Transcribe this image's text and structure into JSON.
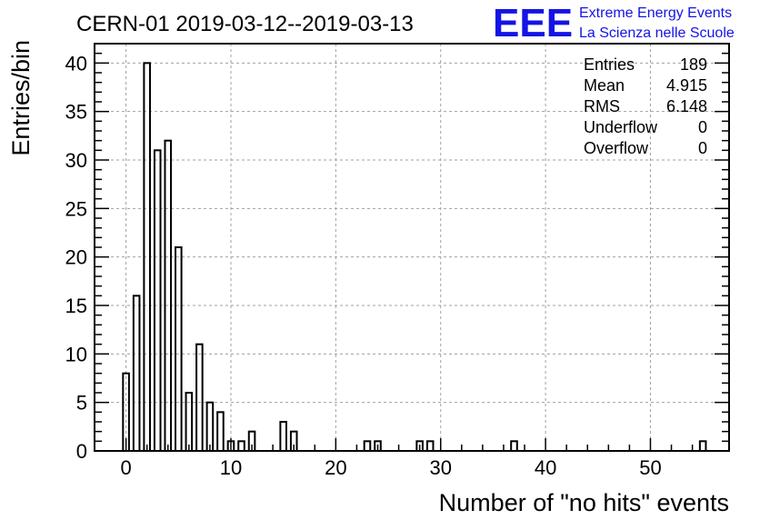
{
  "chart_data": {
    "type": "bar",
    "title": "CERN-01 2019-03-12--2019-03-13",
    "xlabel": "Number of \"no hits\" events",
    "ylabel": "Entries/bin",
    "xlim": [
      -3,
      57.5
    ],
    "ylim": [
      0,
      42
    ],
    "bin_width": 0.57,
    "xticks": [
      0,
      10,
      20,
      30,
      40,
      50
    ],
    "yticks": [
      0,
      5,
      10,
      15,
      20,
      25,
      30,
      35,
      40
    ],
    "grid": true,
    "bins": [
      {
        "x": 0,
        "y": 8
      },
      {
        "x": 1,
        "y": 16
      },
      {
        "x": 2,
        "y": 40
      },
      {
        "x": 3,
        "y": 31
      },
      {
        "x": 4,
        "y": 32
      },
      {
        "x": 5,
        "y": 21
      },
      {
        "x": 6,
        "y": 6
      },
      {
        "x": 7,
        "y": 11
      },
      {
        "x": 8,
        "y": 5
      },
      {
        "x": 9,
        "y": 4
      },
      {
        "x": 10,
        "y": 1
      },
      {
        "x": 11,
        "y": 1
      },
      {
        "x": 12,
        "y": 2
      },
      {
        "x": 15,
        "y": 3
      },
      {
        "x": 16,
        "y": 2
      },
      {
        "x": 23,
        "y": 1
      },
      {
        "x": 24,
        "y": 1
      },
      {
        "x": 28,
        "y": 1
      },
      {
        "x": 29,
        "y": 1
      },
      {
        "x": 37,
        "y": 1
      },
      {
        "x": 55,
        "y": 1
      }
    ],
    "stats": [
      {
        "label": "Entries",
        "value": "189"
      },
      {
        "label": "Mean",
        "value": "4.915"
      },
      {
        "label": "RMS",
        "value": "6.148"
      },
      {
        "label": "Underflow",
        "value": "0"
      },
      {
        "label": "Overflow",
        "value": "0"
      }
    ]
  },
  "logo": {
    "mark": "EEE",
    "line1": "Extreme Energy Events",
    "line2": "La Scienza nelle Scuole"
  },
  "colors": {
    "logo": "#1414e6",
    "grid": "#a0a0a0",
    "bars": "#000000"
  }
}
